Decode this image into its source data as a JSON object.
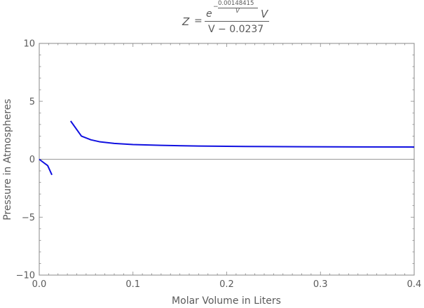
{
  "chart_data": {
    "type": "line",
    "title": {
      "lhs": "Z",
      "equals": "=",
      "exp_numerator": "0.00148415",
      "exp_denominator": "V",
      "exp_sign": "−",
      "base": "e",
      "numerator_var": "V",
      "denominator": "V − 0.0237"
    },
    "xlabel": "Molar Volume in Liters",
    "ylabel": "Pressure in Atmospheres",
    "xlim": [
      0,
      0.4
    ],
    "ylim": [
      -10,
      10
    ],
    "x_ticks": [
      {
        "value": 0.0,
        "label": "0.0"
      },
      {
        "value": 0.1,
        "label": "0.1"
      },
      {
        "value": 0.2,
        "label": "0.2"
      },
      {
        "value": 0.3,
        "label": "0.3"
      },
      {
        "value": 0.4,
        "label": "0.4"
      }
    ],
    "y_ticks": [
      {
        "value": -10,
        "label": "−10"
      },
      {
        "value": -5,
        "label": "−5"
      },
      {
        "value": 0,
        "label": "0"
      },
      {
        "value": 5,
        "label": "5"
      },
      {
        "value": 10,
        "label": "10"
      }
    ],
    "grid": false,
    "series_color": "#1010e0",
    "axis_color": "#888888",
    "segments": [
      [
        [
          0.0,
          0.0
        ],
        [
          0.004,
          -0.25
        ],
        [
          0.009,
          -0.55
        ],
        [
          0.0135,
          -1.35
        ]
      ],
      [
        [
          0.0335,
          3.3
        ],
        [
          0.045,
          2.0
        ],
        [
          0.055,
          1.68
        ],
        [
          0.065,
          1.5
        ],
        [
          0.08,
          1.37
        ],
        [
          0.1,
          1.27
        ],
        [
          0.13,
          1.2
        ],
        [
          0.17,
          1.14
        ],
        [
          0.22,
          1.1
        ],
        [
          0.28,
          1.08
        ],
        [
          0.34,
          1.065
        ],
        [
          0.4,
          1.055
        ]
      ]
    ]
  }
}
